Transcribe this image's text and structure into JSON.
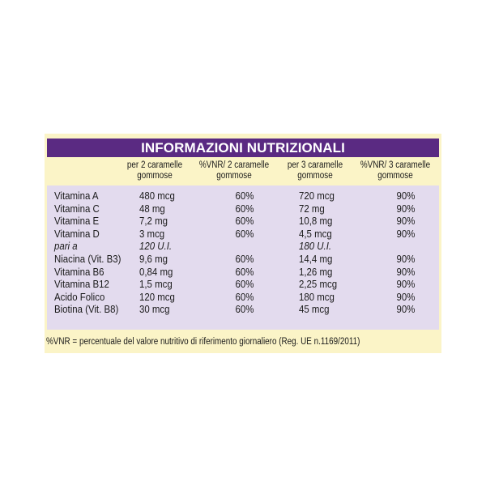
{
  "title": "INFORMAZIONI NUTRIZIONALI",
  "columns": [
    [
      "per 2 caramelle",
      "gommose"
    ],
    [
      "%VNR/ 2 caramelle",
      "gommose"
    ],
    [
      "per 3 caramelle",
      "gommose"
    ],
    [
      "%VNR/ 3 caramelle",
      "gommose"
    ]
  ],
  "rows": [
    {
      "name": "Vitamina A",
      "amount2": "480 mcg",
      "vnr2": "60%",
      "amount3": "720 mcg",
      "vnr3": "90%"
    },
    {
      "name": "Vitamina C",
      "amount2": "48 mg",
      "vnr2": "60%",
      "amount3": "72 mg",
      "vnr3": "90%"
    },
    {
      "name": "Vitamina E",
      "amount2": "7,2 mg",
      "vnr2": "60%",
      "amount3": "10,8 mg",
      "vnr3": "90%"
    },
    {
      "name": "Vitamina D",
      "amount2": "3 mcg",
      "vnr2": "60%",
      "amount3": "4,5 mcg",
      "vnr3": "90%"
    },
    {
      "name": "pari a",
      "amount2": "120 U.I.",
      "vnr2": "",
      "amount3": "180 U.I.",
      "vnr3": "",
      "italic": true
    },
    {
      "name": "Niacina (Vit. B3)",
      "amount2": "9,6 mg",
      "vnr2": "60%",
      "amount3": "14,4 mg",
      "vnr3": "90%"
    },
    {
      "name": "Vitamina  B6",
      "amount2": "0,84 mg",
      "vnr2": "60%",
      "amount3": "1,26 mg",
      "vnr3": "90%"
    },
    {
      "name": "Vitamina B12",
      "amount2": "1,5 mcg",
      "vnr2": "60%",
      "amount3": "2,25 mcg",
      "vnr3": "90%"
    },
    {
      "name": "Acido Folico",
      "amount2": "120 mcg",
      "vnr2": "60%",
      "amount3": "180 mcg",
      "vnr3": "90%"
    },
    {
      "name": "Biotina (Vit. B8)",
      "amount2": "30 mcg",
      "vnr2": "60%",
      "amount3": "45 mcg",
      "vnr3": "90%"
    }
  ],
  "footnote": "%VNR = percentuale del valore nutritivo di riferimento giornaliero (Reg. UE n.1169/2011)",
  "colors": {
    "panel": "#fbf4c7",
    "title_bar": "#5a2a82",
    "table_bg": "#e3dbee"
  }
}
